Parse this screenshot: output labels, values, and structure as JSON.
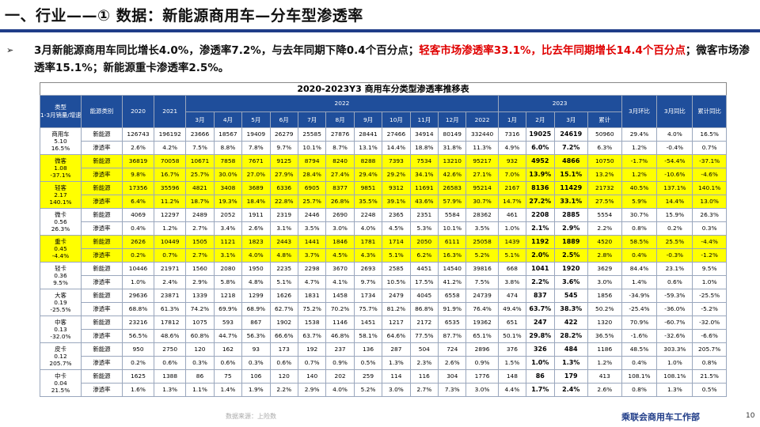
{
  "slide": {
    "title": "一、行业——① 数据：新能源商用车—分车型渗透率",
    "bullet_icon": "➢",
    "summary_part1": "3月新能源商用车同比增长4.0%，渗透率7.2%，与去年同期下降0.4个百分点；",
    "summary_red": "轻客市场渗透率33.1%，比去年同期增长14.4个百分点",
    "summary_part2": "；微客市场渗透率15.1%；新能源重卡渗透率2.5%。",
    "source": "数据来源：上险数",
    "brand": "乘联会商用车工作部",
    "page_number": "10"
  },
  "table": {
    "title": "2020-2023Y3 商用车分类型渗透率推移表",
    "headers": {
      "category": "类型\n1-3月销量/增速",
      "energy": "能源类别",
      "y2020": "2020",
      "y2021": "2021",
      "y2022": "2022",
      "y2023": "2023",
      "months_2022": [
        "3月",
        "4月",
        "5月",
        "6月",
        "7月",
        "8月",
        "9月",
        "10月",
        "11月",
        "12月",
        "2022"
      ],
      "months_2023": [
        "1月",
        "2月",
        "3月",
        "累计"
      ],
      "mom": "3月环比",
      "yoy_month": "3月同比",
      "yoy_cum": "累计同比"
    },
    "groups": [
      {
        "cat": "商用车\n5.10\n16.5%",
        "yellow": false,
        "rows": [
          [
            "新能源",
            "126743",
            "196192",
            "23666",
            "18567",
            "19409",
            "26279",
            "25585",
            "27876",
            "28441",
            "27466",
            "34914",
            "80149",
            "332440",
            "7316",
            "19025",
            "24619",
            "50960",
            "29.4%",
            "4.0%",
            "16.5%"
          ],
          [
            "渗透率",
            "2.6%",
            "4.2%",
            "7.5%",
            "8.8%",
            "7.8%",
            "9.7%",
            "10.1%",
            "8.7%",
            "13.1%",
            "14.4%",
            "18.8%",
            "31.8%",
            "11.3%",
            "4.9%",
            "6.0%",
            "7.2%",
            "6.3%",
            "1.2%",
            "-0.4%",
            "0.7%"
          ]
        ]
      },
      {
        "cat": "微客\n1.08\n-37.1%",
        "yellow": true,
        "rows": [
          [
            "新能源",
            "36819",
            "70058",
            "10671",
            "7858",
            "7671",
            "9125",
            "8794",
            "8240",
            "8288",
            "7393",
            "7534",
            "13210",
            "95217",
            "932",
            "4952",
            "4866",
            "10750",
            "-1.7%",
            "-54.4%",
            "-37.1%"
          ],
          [
            "渗透率",
            "9.8%",
            "16.7%",
            "25.7%",
            "30.0%",
            "27.0%",
            "27.9%",
            "28.4%",
            "27.4%",
            "29.4%",
            "29.2%",
            "34.1%",
            "42.6%",
            "27.1%",
            "7.0%",
            "13.9%",
            "15.1%",
            "13.2%",
            "1.2%",
            "-10.6%",
            "-4.6%"
          ]
        ]
      },
      {
        "cat": "轻客\n2.17\n140.1%",
        "yellow": true,
        "rows": [
          [
            "新能源",
            "17356",
            "35596",
            "4821",
            "3408",
            "3689",
            "6336",
            "6905",
            "8377",
            "9851",
            "9312",
            "11691",
            "26583",
            "95214",
            "2167",
            "8136",
            "11429",
            "21732",
            "40.5%",
            "137.1%",
            "140.1%"
          ],
          [
            "渗透率",
            "6.4%",
            "11.2%",
            "18.7%",
            "19.3%",
            "18.4%",
            "22.8%",
            "25.7%",
            "26.8%",
            "35.5%",
            "39.1%",
            "43.6%",
            "57.9%",
            "30.7%",
            "14.7%",
            "27.2%",
            "33.1%",
            "27.5%",
            "5.9%",
            "14.4%",
            "13.0%"
          ]
        ]
      },
      {
        "cat": "微卡\n0.56\n26.3%",
        "yellow": false,
        "rows": [
          [
            "新能源",
            "4069",
            "12297",
            "2489",
            "2052",
            "1911",
            "2319",
            "2446",
            "2690",
            "2248",
            "2365",
            "2351",
            "5584",
            "28362",
            "461",
            "2208",
            "2885",
            "5554",
            "30.7%",
            "15.9%",
            "26.3%"
          ],
          [
            "渗透率",
            "0.4%",
            "1.2%",
            "2.7%",
            "3.4%",
            "2.6%",
            "3.1%",
            "3.5%",
            "3.0%",
            "4.0%",
            "4.5%",
            "5.3%",
            "10.1%",
            "3.5%",
            "1.0%",
            "2.1%",
            "2.9%",
            "2.2%",
            "0.8%",
            "0.2%",
            "0.3%"
          ]
        ]
      },
      {
        "cat": "重卡\n0.45\n-4.4%",
        "yellow": true,
        "rows": [
          [
            "新能源",
            "2626",
            "10449",
            "1505",
            "1121",
            "1823",
            "2443",
            "1441",
            "1846",
            "1781",
            "1714",
            "2050",
            "6111",
            "25058",
            "1439",
            "1192",
            "1889",
            "4520",
            "58.5%",
            "25.5%",
            "-4.4%"
          ],
          [
            "渗透率",
            "0.2%",
            "0.7%",
            "2.7%",
            "3.1%",
            "4.0%",
            "4.8%",
            "3.7%",
            "4.5%",
            "4.3%",
            "5.1%",
            "6.2%",
            "16.3%",
            "5.2%",
            "5.1%",
            "2.0%",
            "2.5%",
            "2.8%",
            "0.4%",
            "-0.3%",
            "-1.2%"
          ]
        ]
      },
      {
        "cat": "轻卡\n0.36\n9.5%",
        "yellow": false,
        "rows": [
          [
            "新能源",
            "10446",
            "21971",
            "1560",
            "2080",
            "1950",
            "2235",
            "2298",
            "3670",
            "2693",
            "2585",
            "4451",
            "14540",
            "39816",
            "668",
            "1041",
            "1920",
            "3629",
            "84.4%",
            "23.1%",
            "9.5%"
          ],
          [
            "渗透率",
            "1.0%",
            "2.4%",
            "2.9%",
            "5.8%",
            "4.8%",
            "5.1%",
            "4.7%",
            "4.1%",
            "9.7%",
            "10.5%",
            "17.5%",
            "41.2%",
            "7.5%",
            "3.8%",
            "2.2%",
            "3.6%",
            "3.0%",
            "1.4%",
            "0.6%",
            "1.0%"
          ]
        ]
      },
      {
        "cat": "大客\n0.19\n-25.5%",
        "yellow": false,
        "rows": [
          [
            "新能源",
            "29636",
            "23871",
            "1339",
            "1218",
            "1299",
            "1626",
            "1831",
            "1458",
            "1734",
            "2479",
            "4045",
            "6558",
            "24739",
            "474",
            "837",
            "545",
            "1856",
            "-34.9%",
            "-59.3%",
            "-25.5%"
          ],
          [
            "渗透率",
            "68.8%",
            "61.3%",
            "74.2%",
            "69.9%",
            "68.9%",
            "62.7%",
            "75.2%",
            "70.2%",
            "75.7%",
            "81.2%",
            "86.8%",
            "91.9%",
            "76.4%",
            "49.4%",
            "63.7%",
            "38.3%",
            "50.2%",
            "-25.4%",
            "-36.0%",
            "-5.2%"
          ]
        ]
      },
      {
        "cat": "中客\n0.13\n-32.0%",
        "yellow": false,
        "rows": [
          [
            "新能源",
            "23216",
            "17812",
            "1075",
            "593",
            "867",
            "1902",
            "1538",
            "1146",
            "1451",
            "1217",
            "2172",
            "6535",
            "19362",
            "651",
            "247",
            "422",
            "1320",
            "70.9%",
            "-60.7%",
            "-32.0%"
          ],
          [
            "渗透率",
            "56.5%",
            "48.6%",
            "60.8%",
            "44.7%",
            "56.3%",
            "66.6%",
            "63.7%",
            "46.8%",
            "58.1%",
            "64.6%",
            "77.5%",
            "87.7%",
            "65.1%",
            "50.1%",
            "29.8%",
            "28.2%",
            "36.5%",
            "-1.6%",
            "-32.6%",
            "-6.6%"
          ]
        ]
      },
      {
        "cat": "皮卡\n0.12\n205.7%",
        "yellow": false,
        "rows": [
          [
            "新能源",
            "950",
            "2750",
            "120",
            "162",
            "93",
            "173",
            "192",
            "237",
            "136",
            "287",
            "504",
            "724",
            "2896",
            "376",
            "326",
            "484",
            "1186",
            "48.5%",
            "303.3%",
            "205.7%"
          ],
          [
            "渗透率",
            "0.2%",
            "0.6%",
            "0.3%",
            "0.6%",
            "0.3%",
            "0.6%",
            "0.7%",
            "0.9%",
            "0.5%",
            "1.3%",
            "2.3%",
            "2.6%",
            "0.9%",
            "1.5%",
            "1.0%",
            "1.3%",
            "1.2%",
            "0.4%",
            "1.0%",
            "0.8%"
          ]
        ]
      },
      {
        "cat": "中卡\n0.04\n21.5%",
        "yellow": false,
        "rows": [
          [
            "新能源",
            "1625",
            "1388",
            "86",
            "75",
            "106",
            "120",
            "140",
            "202",
            "259",
            "114",
            "116",
            "304",
            "1776",
            "148",
            "86",
            "179",
            "413",
            "108.1%",
            "108.1%",
            "21.5%"
          ],
          [
            "渗透率",
            "1.6%",
            "1.3%",
            "1.1%",
            "1.4%",
            "1.9%",
            "2.2%",
            "2.9%",
            "4.0%",
            "5.2%",
            "3.0%",
            "2.7%",
            "7.3%",
            "3.0%",
            "4.4%",
            "1.7%",
            "2.4%",
            "2.6%",
            "0.8%",
            "1.3%",
            "0.5%"
          ]
        ]
      }
    ]
  }
}
